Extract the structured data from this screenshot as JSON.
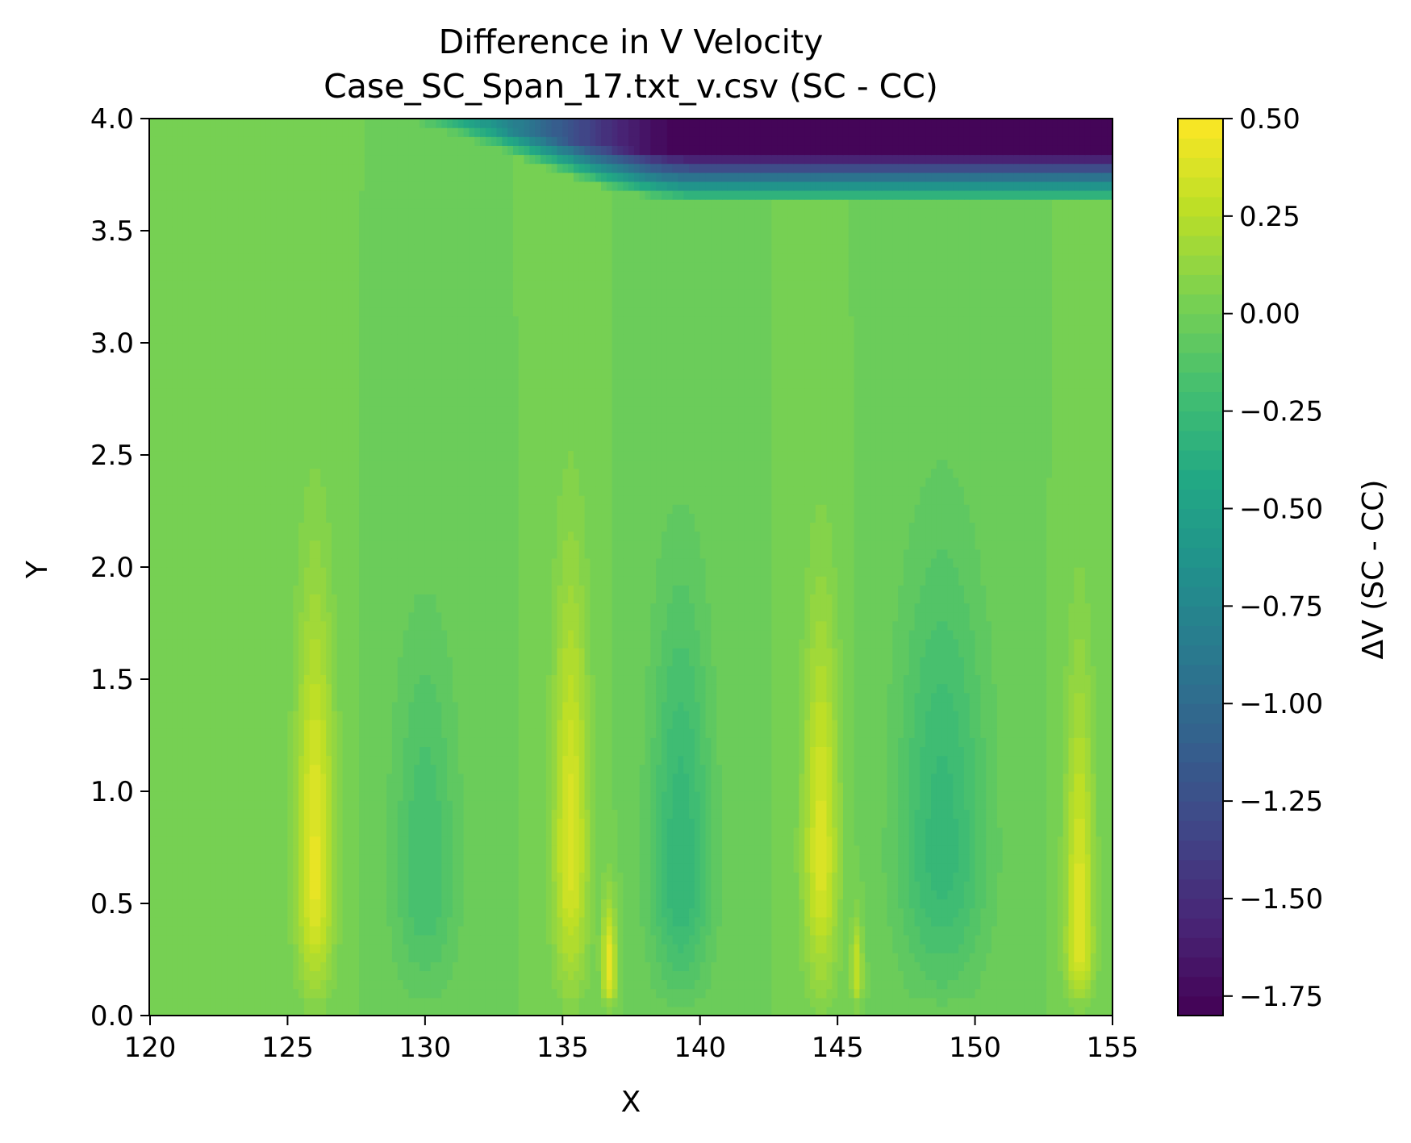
{
  "chart_data": {
    "type": "heatmap",
    "title": "Difference in V Velocity",
    "subtitle": "Case_SC_Span_17.txt_v.csv (SC - CC)",
    "xlabel": "X",
    "ylabel": "Y",
    "xlim": [
      120,
      155
    ],
    "ylim": [
      0.0,
      4.0
    ],
    "x_ticks": [
      120,
      125,
      130,
      135,
      140,
      145,
      150,
      155
    ],
    "x_tick_labels": [
      "120",
      "125",
      "130",
      "135",
      "140",
      "145",
      "150",
      "155"
    ],
    "y_ticks": [
      0.0,
      0.5,
      1.0,
      1.5,
      2.0,
      2.5,
      3.0,
      3.5,
      4.0
    ],
    "y_tick_labels": [
      "0.0",
      "0.5",
      "1.0",
      "1.5",
      "2.0",
      "2.5",
      "3.0",
      "3.5",
      "4.0"
    ],
    "colormap": "viridis",
    "colorbar": {
      "label": "ΔV (SC - CC)",
      "range": [
        -1.8,
        0.5
      ],
      "ticks": [
        0.5,
        0.25,
        0.0,
        -0.25,
        -0.5,
        -0.75,
        -1.0,
        -1.25,
        -1.5,
        -1.75
      ],
      "tick_labels": [
        "0.50",
        "0.25",
        "0.00",
        "−0.25",
        "−0.50",
        "−0.75",
        "−1.00",
        "−1.25",
        "−1.50",
        "−1.75"
      ]
    },
    "background_value": 0.0,
    "features": [
      {
        "kind": "positive_streak",
        "x_center": 126.0,
        "x_width": 1.6,
        "y_peak": 0.6,
        "y_extent": 2.2,
        "peak": 0.42
      },
      {
        "kind": "positive_streak",
        "x_center": 135.3,
        "x_width": 1.5,
        "y_peak": 0.7,
        "y_extent": 2.3,
        "peak": 0.38
      },
      {
        "kind": "positive_streak",
        "x_center": 136.7,
        "x_width": 0.6,
        "y_peak": 0.2,
        "y_extent": 0.6,
        "peak": 0.45
      },
      {
        "kind": "positive_streak",
        "x_center": 144.4,
        "x_width": 1.5,
        "y_peak": 0.7,
        "y_extent": 2.1,
        "peak": 0.38
      },
      {
        "kind": "positive_streak",
        "x_center": 145.7,
        "x_width": 0.5,
        "y_peak": 0.2,
        "y_extent": 0.5,
        "peak": 0.3
      },
      {
        "kind": "positive_streak",
        "x_center": 153.8,
        "x_width": 1.2,
        "y_peak": 0.3,
        "y_extent": 1.8,
        "peak": 0.4
      },
      {
        "kind": "negative_region",
        "x_center": 130.0,
        "x_width": 2.8,
        "y_peak": 0.6,
        "y_extent": 2.0,
        "peak": -0.2
      },
      {
        "kind": "negative_region",
        "x_center": 139.3,
        "x_width": 2.6,
        "y_peak": 0.6,
        "y_extent": 2.2,
        "peak": -0.3
      },
      {
        "kind": "negative_region",
        "x_center": 148.8,
        "x_width": 3.8,
        "y_peak": 0.7,
        "y_extent": 2.4,
        "peak": -0.28
      },
      {
        "kind": "top_band",
        "x_start": 127.5,
        "x_full": 140.0,
        "y_top": 4.0,
        "y_bottom_min": 3.62,
        "peak": -1.8
      }
    ]
  }
}
